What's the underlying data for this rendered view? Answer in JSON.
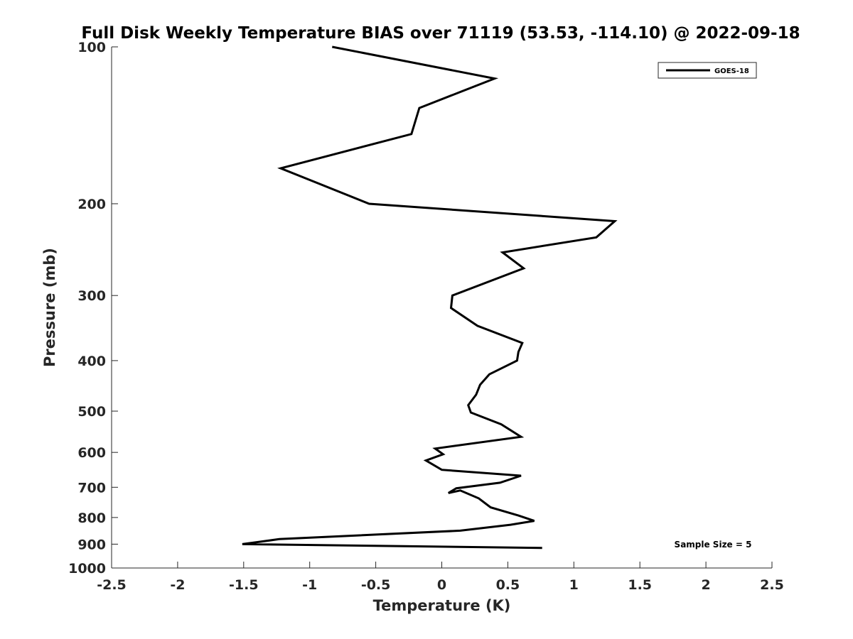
{
  "chart_data": {
    "type": "line",
    "title": "Full Disk Weekly Temperature BIAS over 71119 (53.53, -114.10) @ 2022-09-18",
    "xlabel": "Temperature (K)",
    "ylabel": "Pressure (mb)",
    "xlim": [
      -2.5,
      2.5
    ],
    "ylim": [
      100,
      1000
    ],
    "yscale": "log",
    "yreversed": true,
    "x_ticks": [
      -2.5,
      -2,
      -1.5,
      -1,
      -0.5,
      0,
      0.5,
      1,
      1.5,
      2,
      2.5
    ],
    "x_tick_labels": [
      "-2.5",
      "-2",
      "-1.5",
      "-1",
      "-0.5",
      "0",
      "0.5",
      "1",
      "1.5",
      "2",
      "2.5"
    ],
    "y_ticks": [
      100,
      200,
      300,
      400,
      500,
      600,
      700,
      800,
      900,
      1000
    ],
    "y_tick_labels": [
      "100",
      "200",
      "300",
      "400",
      "500",
      "600",
      "700",
      "800",
      "900",
      "1000"
    ],
    "grid": false,
    "legend_position": "top-right",
    "annotation": "Sample Size = 5",
    "line_color": "#000000",
    "series": [
      {
        "name": "GOES-18",
        "points": [
          {
            "x": -0.83,
            "y": 100
          },
          {
            "x": 0.4,
            "y": 115
          },
          {
            "x": -0.17,
            "y": 131
          },
          {
            "x": -0.23,
            "y": 147
          },
          {
            "x": -1.22,
            "y": 171
          },
          {
            "x": -0.55,
            "y": 200
          },
          {
            "x": 1.31,
            "y": 216
          },
          {
            "x": 1.17,
            "y": 232
          },
          {
            "x": 0.46,
            "y": 248
          },
          {
            "x": 0.62,
            "y": 266
          },
          {
            "x": 0.08,
            "y": 300
          },
          {
            "x": 0.07,
            "y": 317
          },
          {
            "x": 0.27,
            "y": 343
          },
          {
            "x": 0.61,
            "y": 370
          },
          {
            "x": 0.58,
            "y": 385
          },
          {
            "x": 0.57,
            "y": 400
          },
          {
            "x": 0.36,
            "y": 425
          },
          {
            "x": 0.29,
            "y": 445
          },
          {
            "x": 0.26,
            "y": 465
          },
          {
            "x": 0.2,
            "y": 487
          },
          {
            "x": 0.22,
            "y": 503
          },
          {
            "x": 0.45,
            "y": 530
          },
          {
            "x": 0.6,
            "y": 560
          },
          {
            "x": -0.05,
            "y": 590
          },
          {
            "x": 0.01,
            "y": 605
          },
          {
            "x": -0.12,
            "y": 622
          },
          {
            "x": 0.0,
            "y": 648
          },
          {
            "x": 0.6,
            "y": 665
          },
          {
            "x": 0.44,
            "y": 686
          },
          {
            "x": 0.11,
            "y": 703
          },
          {
            "x": 0.05,
            "y": 718
          },
          {
            "x": 0.14,
            "y": 710
          },
          {
            "x": 0.28,
            "y": 735
          },
          {
            "x": 0.37,
            "y": 765
          },
          {
            "x": 0.58,
            "y": 793
          },
          {
            "x": 0.7,
            "y": 812
          },
          {
            "x": 0.52,
            "y": 826
          },
          {
            "x": 0.14,
            "y": 848
          },
          {
            "x": -1.23,
            "y": 880
          },
          {
            "x": -1.51,
            "y": 900
          },
          {
            "x": 0.76,
            "y": 915
          }
        ]
      }
    ]
  }
}
